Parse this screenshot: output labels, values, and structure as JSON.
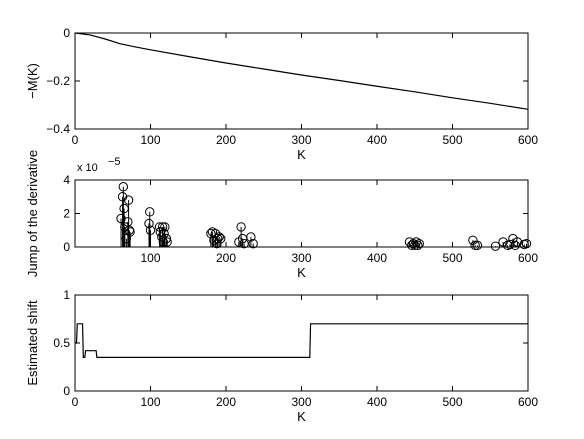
{
  "chart_data": [
    {
      "type": "line",
      "ylabel": "−M(K)",
      "xlabel": "K",
      "xlim": [
        0,
        600
      ],
      "ylim": [
        -0.4,
        0
      ],
      "xticks": [
        0,
        100,
        200,
        300,
        400,
        500,
        600
      ],
      "yticks": [
        0,
        -0.2,
        -0.4
      ],
      "ytick_labels": [
        "0",
        "−0.2",
        "−0.4"
      ],
      "series": [
        {
          "x": [
            0,
            20,
            40,
            60,
            80,
            100,
            150,
            200,
            250,
            300,
            350,
            400,
            450,
            500,
            550,
            600
          ],
          "y": [
            0,
            -0.008,
            -0.025,
            -0.045,
            -0.058,
            -0.07,
            -0.098,
            -0.125,
            -0.15,
            -0.175,
            -0.198,
            -0.222,
            -0.245,
            -0.27,
            -0.293,
            -0.318
          ]
        }
      ]
    },
    {
      "type": "scatter",
      "ylabel": "Jump of the derivative",
      "xlabel": "K",
      "exponent_label": "x 10",
      "exponent_power": "−5",
      "xlim": [
        0,
        600
      ],
      "ylim": [
        0,
        4
      ],
      "xticks": [
        100,
        200,
        300,
        400,
        500,
        600
      ],
      "yticks": [
        0,
        2,
        4
      ],
      "marker": "circle-stem",
      "points": [
        [
          61,
          1.7
        ],
        [
          63,
          3.0
        ],
        [
          64,
          3.6
        ],
        [
          65,
          2.3
        ],
        [
          66,
          1.2
        ],
        [
          68,
          0.5
        ],
        [
          70,
          1.5
        ],
        [
          71,
          2.8
        ],
        [
          72,
          1.0
        ],
        [
          73,
          0.9
        ],
        [
          98,
          1.4
        ],
        [
          99,
          2.1
        ],
        [
          100,
          1.0
        ],
        [
          112,
          1.2
        ],
        [
          113,
          0.9
        ],
        [
          115,
          0.6
        ],
        [
          116,
          1.2
        ],
        [
          117,
          0.3
        ],
        [
          118,
          0.8
        ],
        [
          119,
          1.2
        ],
        [
          121,
          0.5
        ],
        [
          122,
          0.3
        ],
        [
          180,
          0.8
        ],
        [
          182,
          0.9
        ],
        [
          184,
          0.4
        ],
        [
          186,
          0.8
        ],
        [
          188,
          0.2
        ],
        [
          189,
          0.5
        ],
        [
          191,
          0.6
        ],
        [
          193,
          0.5
        ],
        [
          217,
          0.3
        ],
        [
          220,
          1.2
        ],
        [
          222,
          0.5
        ],
        [
          224,
          0.2
        ],
        [
          233,
          0.6
        ],
        [
          236,
          0.2
        ],
        [
          443,
          0.3
        ],
        [
          446,
          0.1
        ],
        [
          448,
          0.2
        ],
        [
          450,
          0.1
        ],
        [
          452,
          0.3
        ],
        [
          454,
          0.1
        ],
        [
          456,
          0.2
        ],
        [
          527,
          0.4
        ],
        [
          530,
          0.1
        ],
        [
          533,
          0.1
        ],
        [
          557,
          0.05
        ],
        [
          567,
          0.3
        ],
        [
          573,
          0.1
        ],
        [
          576,
          0.15
        ],
        [
          580,
          0.5
        ],
        [
          583,
          0.1
        ],
        [
          586,
          0.3
        ],
        [
          595,
          0.15
        ],
        [
          598,
          0.2
        ]
      ]
    },
    {
      "type": "line",
      "ylabel": "Estimated shift",
      "xlabel": "K",
      "xlim": [
        0,
        600
      ],
      "ylim": [
        0,
        1
      ],
      "xticks": [
        0,
        100,
        200,
        300,
        400,
        500,
        600
      ],
      "yticks": [
        0,
        0.5,
        1
      ],
      "step": true,
      "series": [
        {
          "x": [
            0,
            2,
            3,
            10,
            11,
            13,
            14,
            20,
            21,
            28,
            29,
            311,
            312,
            600
          ],
          "y": [
            0.5,
            0.5,
            0.7,
            0.7,
            0.35,
            0.35,
            0.42,
            0.42,
            0.42,
            0.42,
            0.35,
            0.35,
            0.7,
            0.7
          ]
        }
      ]
    }
  ]
}
